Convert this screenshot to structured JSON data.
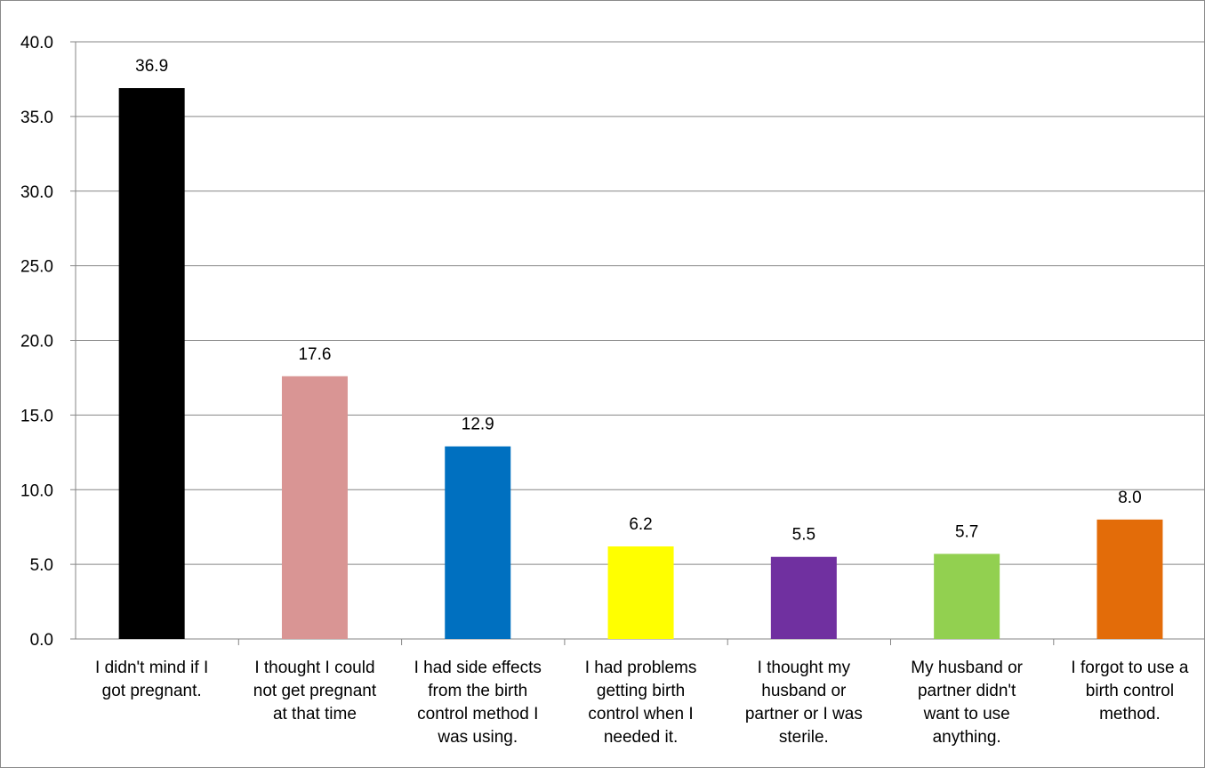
{
  "chart_data": {
    "type": "bar",
    "title": "",
    "xlabel": "",
    "ylabel": "",
    "ylim": [
      0,
      40
    ],
    "yticks": [
      "0.0",
      "5.0",
      "10.0",
      "15.0",
      "20.0",
      "25.0",
      "30.0",
      "35.0",
      "40.0"
    ],
    "grid": true,
    "legend": "none",
    "categories": [
      [
        "I didn't mind if I",
        "got pregnant."
      ],
      [
        "I thought I could",
        "not get pregnant",
        "at that time"
      ],
      [
        "I had side effects",
        "from the birth",
        "control method I",
        "was using."
      ],
      [
        "I had problems",
        "getting birth",
        "control when I",
        "needed it."
      ],
      [
        "I thought my",
        "husband or",
        "partner or I was",
        "sterile."
      ],
      [
        "My husband or",
        "partner didn't",
        "want to use",
        "anything."
      ],
      [
        "I forgot to use a",
        "birth control",
        "method."
      ]
    ],
    "values": [
      36.9,
      17.6,
      12.9,
      6.2,
      5.5,
      5.7,
      8.0
    ],
    "value_labels": [
      "36.9",
      "17.6",
      "12.9",
      "6.2",
      "5.5",
      "5.7",
      "8.0"
    ],
    "colors": [
      "#000000",
      "#d99594",
      "#0070c0",
      "#ffff00",
      "#7030a0",
      "#92d050",
      "#e36c09"
    ]
  }
}
